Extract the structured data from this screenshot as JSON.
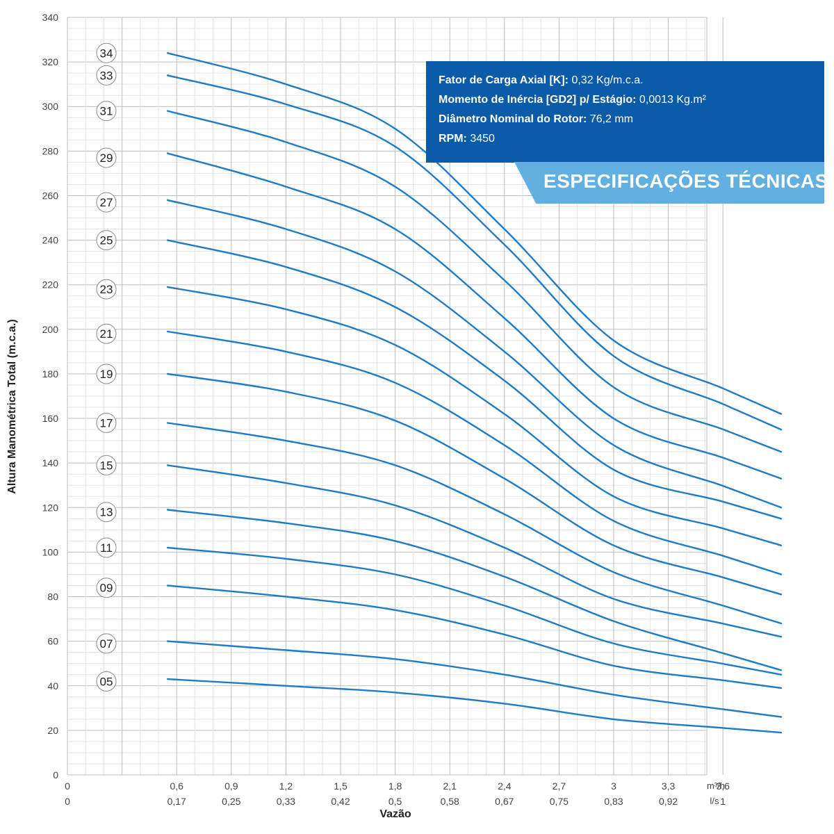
{
  "chart_data": {
    "type": "line",
    "ylabel": "Altura Manométrica Total (m.c.a.)",
    "xlabel": "Vazão",
    "x_unit_primary": "m³/h",
    "x_unit_secondary": "l/s",
    "ylim": [
      0,
      340
    ],
    "xlim": [
      0,
      4.2
    ],
    "y_ticks": [
      "0",
      "20",
      "40",
      "60",
      "80",
      "100",
      "120",
      "140",
      "160",
      "180",
      "200",
      "220",
      "240",
      "260",
      "280",
      "300",
      "320",
      "340"
    ],
    "x_ticks": [
      {
        "value": 0,
        "label": "0",
        "secondary": "0"
      },
      {
        "value": 0.6,
        "label": "0,6",
        "secondary": "0,17"
      },
      {
        "value": 0.9,
        "label": "0,9",
        "secondary": "0,25"
      },
      {
        "value": 1.2,
        "label": "1,2",
        "secondary": "0,33"
      },
      {
        "value": 1.5,
        "label": "1,5",
        "secondary": "0,42"
      },
      {
        "value": 1.8,
        "label": "1,8",
        "secondary": "0,5"
      },
      {
        "value": 2.1,
        "label": "2,1",
        "secondary": "0,58"
      },
      {
        "value": 2.4,
        "label": "2,4",
        "secondary": "0,67"
      },
      {
        "value": 2.7,
        "label": "2,7",
        "secondary": "0,75"
      },
      {
        "value": 3.0,
        "label": "3",
        "secondary": "0,83"
      },
      {
        "value": 3.3,
        "label": "3,3",
        "secondary": "0,92"
      },
      {
        "value": 3.6,
        "label": "3,6",
        "secondary": "1"
      }
    ],
    "x": [
      0.55,
      1.2,
      1.8,
      2.4,
      3.0,
      3.6,
      3.92
    ],
    "series": [
      {
        "name": "34",
        "values": [
          324,
          310,
          290,
          245,
          195,
          138,
          162
        ]
      },
      {
        "name": "33",
        "values": [
          314,
          301,
          282,
          238,
          188,
          130,
          155
        ]
      },
      {
        "name": "31",
        "values": [
          298,
          284,
          264,
          222,
          174,
          120,
          145
        ]
      },
      {
        "name": "29",
        "values": [
          279,
          264,
          245,
          205,
          160,
          110,
          133
        ]
      },
      {
        "name": "27",
        "values": [
          258,
          245,
          226,
          190,
          148,
          100,
          120
        ]
      },
      {
        "name": "25",
        "values": [
          240,
          228,
          210,
          177,
          137,
          93,
          115
        ]
      },
      {
        "name": "23",
        "values": [
          219,
          209,
          193,
          162,
          125,
          85,
          103
        ]
      },
      {
        "name": "21",
        "values": [
          199,
          190,
          176,
          148,
          114,
          77,
          90
        ]
      },
      {
        "name": "19",
        "values": [
          180,
          172,
          159,
          133,
          103,
          69,
          81
        ]
      },
      {
        "name": "17",
        "values": [
          158,
          150,
          139,
          117,
          91,
          60,
          68
        ]
      },
      {
        "name": "15",
        "values": [
          139,
          131,
          121,
          102,
          79,
          52,
          62
        ]
      },
      {
        "name": "13",
        "values": [
          119,
          113,
          105,
          89,
          69,
          45,
          47
        ]
      },
      {
        "name": "11",
        "values": [
          102,
          97,
          90,
          76,
          59,
          39,
          45
        ]
      },
      {
        "name": "09",
        "values": [
          85,
          80,
          74,
          63,
          49,
          32,
          39
        ]
      },
      {
        "name": "07",
        "values": [
          60,
          56,
          52,
          45,
          36,
          24,
          26
        ]
      },
      {
        "name": "05",
        "values": [
          43,
          40,
          37,
          32,
          25,
          17,
          19
        ]
      }
    ],
    "badge_y": [
      {
        "label": "34",
        "y": 324
      },
      {
        "label": "33",
        "y": 314
      },
      {
        "label": "31",
        "y": 298
      },
      {
        "label": "29",
        "y": 277
      },
      {
        "label": "27",
        "y": 257
      },
      {
        "label": "25",
        "y": 240
      },
      {
        "label": "23",
        "y": 218
      },
      {
        "label": "21",
        "y": 198
      },
      {
        "label": "19",
        "y": 180
      },
      {
        "label": "17",
        "y": 158
      },
      {
        "label": "15",
        "y": 139
      },
      {
        "label": "13",
        "y": 118
      },
      {
        "label": "11",
        "y": 102
      },
      {
        "label": "09",
        "y": 84
      },
      {
        "label": "07",
        "y": 59
      },
      {
        "label": "05",
        "y": 42
      }
    ],
    "grid": true,
    "line_color": "#1e7bc6"
  },
  "specs": {
    "lines": [
      {
        "label": "Fator de Carga Axial [K]:",
        "value": " 0,32 Kg/m.c.a."
      },
      {
        "label": "Momento de Inércia [GD2] p/ Estágio:",
        "value": " 0,0013 Kg.m²"
      },
      {
        "label": "Diâmetro Nominal do Rotor:",
        "value": " 76,2 mm"
      },
      {
        "label": "RPM:",
        "value": " 3450"
      }
    ],
    "banner": "ESPECIFICAÇÕES TÉCNICAS",
    "box_color": "#0a5ba8",
    "banner_color": "#62afe2"
  }
}
